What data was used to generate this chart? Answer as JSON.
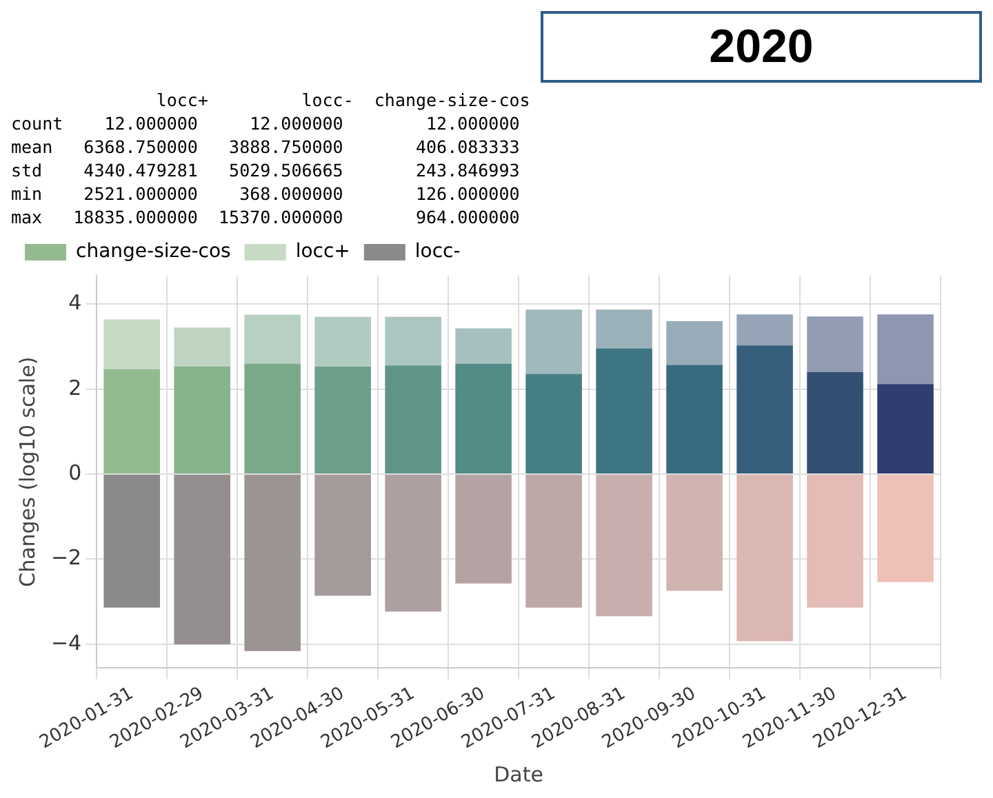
{
  "chart_data": {
    "type": "bar",
    "title": "2020",
    "xlabel": "Date",
    "ylabel": "Changes (log10 scale)",
    "annotations": [
      "              locc+         locc-  change-size-cos",
      "count    12.000000     12.000000        12.000000",
      "mean   6368.750000   3888.750000       406.083333",
      "std    4340.479281   5029.506665       243.846993",
      "min    2521.000000    368.000000       126.000000",
      "max   18835.000000  15370.000000       964.000000"
    ],
    "categories": [
      "2020-01-31",
      "2020-02-29",
      "2020-03-31",
      "2020-04-30",
      "2020-05-31",
      "2020-06-30",
      "2020-07-31",
      "2020-08-31",
      "2020-09-30",
      "2020-10-31",
      "2020-11-30",
      "2020-12-31"
    ],
    "stacked": true,
    "series": [
      {
        "name": "change-size-cos",
        "colors": [
          "#93bb8f",
          "#86b28c",
          "#7aa98a",
          "#6c9f89",
          "#5f9587",
          "#538b86",
          "#478084",
          "#3d7582",
          "#386a80",
          "#355f7c",
          "#334f74",
          "#2f3e6e"
        ],
        "values": [
          2.47,
          2.53,
          2.6,
          2.53,
          2.56,
          2.6,
          2.36,
          2.96,
          2.57,
          3.03,
          2.4,
          2.12
        ]
      },
      {
        "name": "locc+",
        "colors": [
          "#c6dac4",
          "#bfd5c2",
          "#b8d0c1",
          "#b2cbc1",
          "#abc6c0",
          "#a5c0bf",
          "#a0b9bd",
          "#9bb2bb",
          "#98abb9",
          "#95a4b6",
          "#929db3",
          "#8f97b0"
        ],
        "values": [
          1.17,
          0.92,
          1.15,
          1.17,
          1.14,
          0.83,
          1.51,
          0.91,
          1.03,
          0.73,
          1.31,
          1.64
        ]
      },
      {
        "name": "locc-",
        "colors": [
          "#8a8a8a",
          "#948f8e",
          "#9c9393",
          "#a59a9a",
          "#ae9fa0",
          "#b5a3a3",
          "#bea7a7",
          "#c8aeac",
          "#d1b3b0",
          "#dbb7b3",
          "#e4bbb5",
          "#efc0b8"
        ],
        "values": [
          -3.14,
          -4.0,
          -4.16,
          -2.86,
          -3.23,
          -2.57,
          -3.14,
          -3.34,
          -2.74,
          -3.93,
          -3.14,
          -2.54
        ]
      }
    ],
    "ylim": [
      -4.56,
      4.67
    ],
    "yticks": [
      -4,
      -2,
      0,
      2,
      4
    ],
    "grid": true,
    "legend": "top left"
  }
}
